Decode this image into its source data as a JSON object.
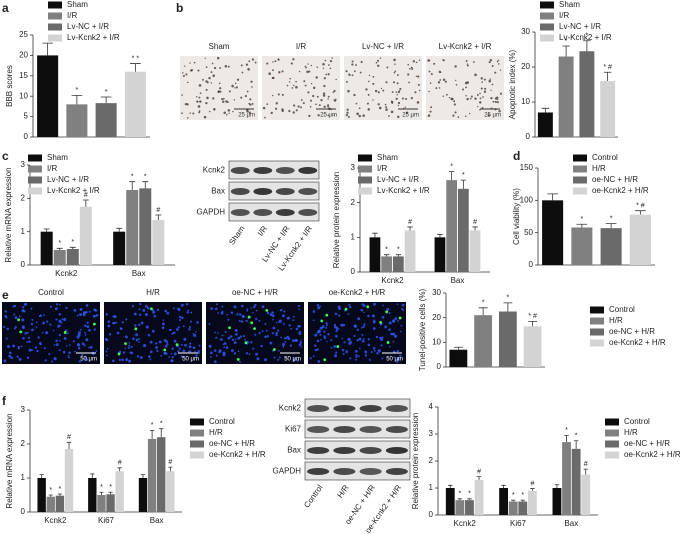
{
  "panels": [
    "a",
    "b",
    "c",
    "d",
    "e",
    "f"
  ],
  "micrographs": [
    {
      "labels": [
        "Sham",
        "I/R",
        "Lv-NC + I/R",
        "Lv-Kcnk2 + I/R"
      ],
      "scale": "25 μm"
    },
    {
      "labels": [
        "Control",
        "H/R",
        "oe-NC + H/R",
        "oe-Kcnk2 + H/R"
      ],
      "scale": "50 μm"
    }
  ],
  "blots": [
    {
      "rows": [
        "Kcnk2",
        "Bax",
        "GAPDH"
      ],
      "lanes": [
        "Sham",
        "I/R",
        "Lv-NC + I/R",
        "Lv-Kcnk2 + I/R"
      ]
    },
    {
      "rows": [
        "Kcnk2",
        "Ki67",
        "Bax",
        "GAPDH"
      ],
      "lanes": [
        "Control",
        "H/R",
        "oe-NC + H/R",
        "oe-Kcnk2 + H/R"
      ]
    }
  ],
  "chart_data": [
    {
      "type": "bar",
      "y_label": "BBB scores",
      "categories": [
        null
      ],
      "ylim": [
        0,
        25
      ],
      "yticks": [
        0,
        5,
        10,
        15,
        20,
        25
      ],
      "series": [
        {
          "name": "Sham",
          "color": "#0d0d0d",
          "values": [
            20
          ],
          "errors": [
            3
          ],
          "sig": [
            null
          ]
        },
        {
          "name": "I/R",
          "color": "#808080",
          "values": [
            8
          ],
          "errors": [
            2.2
          ],
          "sig": [
            "*"
          ]
        },
        {
          "name": "Lv-NC + I/R",
          "color": "#6a6a6a",
          "values": [
            8.3
          ],
          "errors": [
            1.5
          ],
          "sig": [
            "*"
          ]
        },
        {
          "name": "Lv-Kcnk2 + I/R",
          "color": "#d3d3d3",
          "values": [
            16
          ],
          "errors": [
            2
          ],
          "sig": [
            "* *"
          ]
        }
      ]
    },
    {
      "type": "bar",
      "y_label": "Apoptotic index (%)",
      "categories": [
        null
      ],
      "ylim": [
        0,
        30
      ],
      "yticks": [
        0,
        10,
        20,
        30
      ],
      "series": [
        {
          "name": "Sham",
          "color": "#0d0d0d",
          "values": [
            7
          ],
          "errors": [
            1.2
          ],
          "sig": [
            null
          ]
        },
        {
          "name": "I/R",
          "color": "#808080",
          "values": [
            23
          ],
          "errors": [
            3
          ],
          "sig": [
            "*"
          ]
        },
        {
          "name": "Lv-NC + I/R",
          "color": "#6a6a6a",
          "values": [
            24.5
          ],
          "errors": [
            3
          ],
          "sig": [
            "*"
          ]
        },
        {
          "name": "Lv-Kcnk2 + I/R",
          "color": "#d3d3d3",
          "values": [
            16
          ],
          "errors": [
            2.5
          ],
          "sig": [
            "* #"
          ]
        }
      ]
    },
    {
      "type": "bar",
      "y_label": "Relative mRNA expression",
      "categories": [
        "Kcnk2",
        "Bax"
      ],
      "ylim": [
        0,
        3
      ],
      "yticks": [
        0,
        1,
        2,
        3
      ],
      "series": [
        {
          "name": "Sham",
          "color": "#0d0d0d",
          "values": [
            1,
            1
          ],
          "errors": [
            0.08,
            0.1
          ],
          "sig": [
            null,
            null
          ]
        },
        {
          "name": "I/R",
          "color": "#808080",
          "values": [
            0.45,
            2.25
          ],
          "errors": [
            0.05,
            0.25
          ],
          "sig": [
            "*",
            "*"
          ]
        },
        {
          "name": "Lv-NC + I/R",
          "color": "#6a6a6a",
          "values": [
            0.48,
            2.3
          ],
          "errors": [
            0.05,
            0.2
          ],
          "sig": [
            "*",
            "*"
          ]
        },
        {
          "name": "Lv-Kcnk2 + I/R",
          "color": "#d3d3d3",
          "values": [
            1.75,
            1.35
          ],
          "errors": [
            0.2,
            0.15
          ],
          "sig": [
            "#",
            "#"
          ]
        }
      ]
    },
    {
      "type": "bar",
      "y_label": "Relative protein expression",
      "categories": [
        "Kcnk2",
        "Bax"
      ],
      "ylim": [
        0,
        3
      ],
      "yticks": [
        0,
        1,
        2,
        3
      ],
      "series": [
        {
          "name": "Sham",
          "color": "#0d0d0d",
          "values": [
            1,
            1
          ],
          "errors": [
            0.12,
            0.08
          ],
          "sig": [
            null,
            null
          ]
        },
        {
          "name": "I/R",
          "color": "#808080",
          "values": [
            0.45,
            2.65
          ],
          "errors": [
            0.05,
            0.25
          ],
          "sig": [
            "*",
            "*"
          ]
        },
        {
          "name": "Lv-NC + I/R",
          "color": "#6a6a6a",
          "values": [
            0.45,
            2.4
          ],
          "errors": [
            0.05,
            0.25
          ],
          "sig": [
            "*",
            "*"
          ]
        },
        {
          "name": "Lv-Kcnk2 + I/R",
          "color": "#d3d3d3",
          "values": [
            1.2,
            1.2
          ],
          "errors": [
            0.1,
            0.1
          ],
          "sig": [
            "#",
            "#"
          ]
        }
      ]
    },
    {
      "type": "bar",
      "y_label": "Cell viability (%)",
      "categories": [
        null
      ],
      "ylim": [
        0,
        150
      ],
      "yticks": [
        0,
        50,
        100,
        150
      ],
      "series": [
        {
          "name": "Control",
          "color": "#0d0d0d",
          "values": [
            100
          ],
          "errors": [
            10
          ],
          "sig": [
            null
          ]
        },
        {
          "name": "H/R",
          "color": "#808080",
          "values": [
            58
          ],
          "errors": [
            5
          ],
          "sig": [
            "*"
          ]
        },
        {
          "name": "oe-NC + H/R",
          "color": "#6a6a6a",
          "values": [
            57
          ],
          "errors": [
            7
          ],
          "sig": [
            "*"
          ]
        },
        {
          "name": "oe-Kcnk2 + H/R",
          "color": "#d3d3d3",
          "values": [
            78
          ],
          "errors": [
            6
          ],
          "sig": [
            "* #"
          ]
        }
      ]
    },
    {
      "type": "bar",
      "y_label": "Tunel-positive cells (%)",
      "categories": [
        null
      ],
      "ylim": [
        0,
        30
      ],
      "yticks": [
        0,
        10,
        20,
        30
      ],
      "series": [
        {
          "name": "Control",
          "color": "#0d0d0d",
          "values": [
            7
          ],
          "errors": [
            1
          ],
          "sig": [
            null
          ]
        },
        {
          "name": "H/R",
          "color": "#808080",
          "values": [
            21
          ],
          "errors": [
            3
          ],
          "sig": [
            "*"
          ]
        },
        {
          "name": "oe-NC + H/R",
          "color": "#6a6a6a",
          "values": [
            22.5
          ],
          "errors": [
            3.5
          ],
          "sig": [
            "*"
          ]
        },
        {
          "name": "oe-Kcnk2 + H/R",
          "color": "#d3d3d3",
          "values": [
            16.5
          ],
          "errors": [
            2
          ],
          "sig": [
            "* #"
          ]
        }
      ]
    },
    {
      "type": "bar",
      "y_label": "Relative mRNA expression",
      "categories": [
        "Kcnk2",
        "Ki67",
        "Bax"
      ],
      "ylim": [
        0,
        3
      ],
      "yticks": [
        0,
        1,
        2,
        3
      ],
      "series": [
        {
          "name": "Control",
          "color": "#0d0d0d",
          "values": [
            1,
            1,
            1
          ],
          "errors": [
            0.1,
            0.12,
            0.1
          ],
          "sig": [
            null,
            null,
            null
          ]
        },
        {
          "name": "H/R",
          "color": "#808080",
          "values": [
            0.45,
            0.5,
            2.15
          ],
          "errors": [
            0.05,
            0.08,
            0.25
          ],
          "sig": [
            "*",
            "*",
            "*"
          ]
        },
        {
          "name": "oe-NC + H/R",
          "color": "#6a6a6a",
          "values": [
            0.48,
            0.52,
            2.2
          ],
          "errors": [
            0.05,
            0.06,
            0.25
          ],
          "sig": [
            "*",
            "*",
            "*"
          ]
        },
        {
          "name": "oe-Kcnk2 + H/R",
          "color": "#d3d3d3",
          "values": [
            1.85,
            1.2,
            1.2
          ],
          "errors": [
            0.2,
            0.1,
            0.12
          ],
          "sig": [
            "#",
            "#",
            "#"
          ]
        }
      ]
    },
    {
      "type": "bar",
      "y_label": "Relative protein expression",
      "categories": [
        "Kcnk2",
        "Ki67",
        "Bax"
      ],
      "ylim": [
        0,
        4
      ],
      "yticks": [
        0,
        1,
        2,
        3,
        4
      ],
      "series": [
        {
          "name": "Control",
          "color": "#0d0d0d",
          "values": [
            1,
            1,
            1
          ],
          "errors": [
            0.1,
            0.1,
            0.12
          ],
          "sig": [
            null,
            null,
            null
          ]
        },
        {
          "name": "H/R",
          "color": "#808080",
          "values": [
            0.55,
            0.5,
            2.7
          ],
          "errors": [
            0.05,
            0.05,
            0.25
          ],
          "sig": [
            "*",
            "*",
            "*"
          ]
        },
        {
          "name": "oe-NC + H/R",
          "color": "#6a6a6a",
          "values": [
            0.55,
            0.5,
            2.45
          ],
          "errors": [
            0.05,
            0.05,
            0.3
          ],
          "sig": [
            "*",
            "*",
            "*"
          ]
        },
        {
          "name": "oe-Kcnk2 + H/R",
          "color": "#d3d3d3",
          "values": [
            1.3,
            0.9,
            1.5
          ],
          "errors": [
            0.12,
            0.08,
            0.2
          ],
          "sig": [
            "#",
            "#",
            "#"
          ]
        }
      ]
    }
  ]
}
